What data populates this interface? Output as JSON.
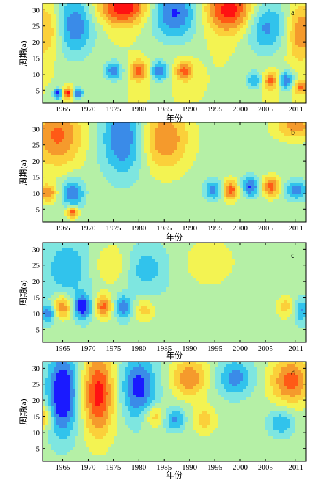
{
  "colors": {
    "ramp": [
      "#1a1aff",
      "#3a8be8",
      "#31c3ec",
      "#7ee6e0",
      "#b5f0a6",
      "#f3f352",
      "#fbd03a",
      "#f59a2c",
      "#ff5a16",
      "#ff1212"
    ]
  },
  "chart_data": [
    {
      "type": "heatmap",
      "panel_label": "a",
      "xlabel": "年份",
      "ylabel": "周期(a)",
      "xlim": [
        1961,
        2013
      ],
      "ylim": [
        1,
        32
      ],
      "x_ticks": [
        1965,
        1970,
        1975,
        1980,
        1985,
        1990,
        1995,
        2000,
        2005,
        2011
      ],
      "y_ticks": [
        5,
        10,
        15,
        20,
        25,
        30
      ],
      "base_level": 0.0,
      "features": [
        {
          "x": 1977,
          "y": 31,
          "sx": 3.5,
          "sy": 4,
          "amp": 1.0
        },
        {
          "x": 1998,
          "y": 30,
          "sx": 3.5,
          "sy": 5,
          "amp": 0.95
        },
        {
          "x": 1967,
          "y": 25,
          "sx": 3.0,
          "sy": 7,
          "amp": -0.8
        },
        {
          "x": 1987,
          "y": 29,
          "sx": 3.5,
          "sy": 6,
          "amp": -0.85
        },
        {
          "x": 2005,
          "y": 25,
          "sx": 3.0,
          "sy": 6,
          "amp": -0.7
        },
        {
          "x": 1962,
          "y": 24,
          "sx": 2.5,
          "sy": 6,
          "amp": 0.55
        },
        {
          "x": 2012,
          "y": 23,
          "sx": 2.0,
          "sy": 6,
          "amp": 0.6
        },
        {
          "x": 1975,
          "y": 11,
          "sx": 1.4,
          "sy": 2.2,
          "amp": -0.7
        },
        {
          "x": 1980,
          "y": 11,
          "sx": 1.3,
          "sy": 2.2,
          "amp": 0.75
        },
        {
          "x": 1984,
          "y": 11,
          "sx": 1.3,
          "sy": 2.2,
          "amp": -0.8
        },
        {
          "x": 1989,
          "y": 11,
          "sx": 1.3,
          "sy": 2.2,
          "amp": 0.7
        },
        {
          "x": 2003,
          "y": 8,
          "sx": 1.3,
          "sy": 2.0,
          "amp": -0.6
        },
        {
          "x": 2006,
          "y": 8,
          "sx": 1.2,
          "sy": 2.0,
          "amp": 0.75
        },
        {
          "x": 2009,
          "y": 8,
          "sx": 1.2,
          "sy": 2.0,
          "amp": -0.8
        },
        {
          "x": 2012,
          "y": 6,
          "sx": 1.0,
          "sy": 1.5,
          "amp": 0.7
        },
        {
          "x": 1964,
          "y": 4,
          "sx": 0.7,
          "sy": 1.2,
          "amp": -0.9
        },
        {
          "x": 1966,
          "y": 4,
          "sx": 0.7,
          "sy": 1.2,
          "amp": 0.9
        },
        {
          "x": 1968,
          "y": 4,
          "sx": 0.7,
          "sy": 1.2,
          "amp": -0.85
        }
      ]
    },
    {
      "type": "heatmap",
      "panel_label": "b",
      "xlabel": "年份",
      "ylabel": "周期(a)",
      "xlim": [
        1961,
        2013
      ],
      "ylim": [
        1,
        32
      ],
      "x_ticks": [
        1965,
        1970,
        1975,
        1980,
        1985,
        1990,
        1995,
        2000,
        2005,
        2011
      ],
      "y_ticks": [
        5,
        10,
        15,
        20,
        25,
        30
      ],
      "base_level": -0.1,
      "features": [
        {
          "x": 1964,
          "y": 28,
          "sx": 3.5,
          "sy": 7,
          "amp": 0.75
        },
        {
          "x": 1977,
          "y": 27,
          "sx": 3.0,
          "sy": 8,
          "amp": -0.75
        },
        {
          "x": 1985,
          "y": 27,
          "sx": 3.5,
          "sy": 7,
          "amp": 0.7
        },
        {
          "x": 2011,
          "y": 31,
          "sx": 3.0,
          "sy": 3,
          "amp": 0.6
        },
        {
          "x": 1967,
          "y": 10,
          "sx": 1.5,
          "sy": 3.0,
          "amp": -0.7
        },
        {
          "x": 1962,
          "y": 10,
          "sx": 1.2,
          "sy": 2.0,
          "amp": 0.65
        },
        {
          "x": 1967,
          "y": 4,
          "sx": 0.8,
          "sy": 1.2,
          "amp": 0.9
        },
        {
          "x": 1995,
          "y": 11,
          "sx": 1.4,
          "sy": 2.2,
          "amp": -0.65
        },
        {
          "x": 1998,
          "y": 11,
          "sx": 1.4,
          "sy": 2.2,
          "amp": 0.85
        },
        {
          "x": 2002,
          "y": 12,
          "sx": 1.4,
          "sy": 2.2,
          "amp": -0.75
        },
        {
          "x": 2006,
          "y": 12,
          "sx": 1.4,
          "sy": 2.2,
          "amp": 0.8
        },
        {
          "x": 2011,
          "y": 11,
          "sx": 1.6,
          "sy": 2.2,
          "amp": -0.6
        }
      ]
    },
    {
      "type": "heatmap",
      "panel_label": "c",
      "xlabel": "年份",
      "ylabel": "周期(a)",
      "xlim": [
        1961,
        2013
      ],
      "ylim": [
        1,
        32
      ],
      "x_ticks": [
        1965,
        1970,
        1975,
        1980,
        1985,
        1990,
        1995,
        2000,
        2005,
        2011
      ],
      "y_ticks": [
        5,
        10,
        15,
        20,
        25,
        30
      ],
      "base_level": -0.15,
      "features": [
        {
          "x": 1966,
          "y": 24,
          "sx": 3.0,
          "sy": 6,
          "amp": -0.45
        },
        {
          "x": 1975,
          "y": 25,
          "sx": 3.0,
          "sy": 5,
          "amp": 0.35
        },
        {
          "x": 1981,
          "y": 24,
          "sx": 3.0,
          "sy": 5,
          "amp": -0.4
        },
        {
          "x": 1994,
          "y": 26,
          "sx": 4.0,
          "sy": 6,
          "amp": 0.3
        },
        {
          "x": 1965,
          "y": 12,
          "sx": 1.3,
          "sy": 2.6,
          "amp": 0.75
        },
        {
          "x": 1969,
          "y": 12,
          "sx": 1.3,
          "sy": 2.6,
          "amp": -0.85
        },
        {
          "x": 1973,
          "y": 12,
          "sx": 1.3,
          "sy": 2.6,
          "amp": 0.8
        },
        {
          "x": 1977,
          "y": 12,
          "sx": 1.3,
          "sy": 2.6,
          "amp": -0.6
        },
        {
          "x": 1962,
          "y": 10,
          "sx": 1.0,
          "sy": 2.0,
          "amp": -0.6
        },
        {
          "x": 1981,
          "y": 11,
          "sx": 1.5,
          "sy": 2.5,
          "amp": 0.45
        },
        {
          "x": 2009,
          "y": 12,
          "sx": 1.5,
          "sy": 2.5,
          "amp": 0.45
        },
        {
          "x": 2012,
          "y": 11,
          "sx": 1.2,
          "sy": 2.5,
          "amp": -0.5
        }
      ]
    },
    {
      "type": "heatmap",
      "panel_label": "d",
      "xlabel": "年份",
      "ylabel": "周期(a)",
      "xlim": [
        1961,
        2013
      ],
      "ylim": [
        1,
        32
      ],
      "x_ticks": [
        1965,
        1970,
        1975,
        1980,
        1985,
        1990,
        1995,
        2000,
        2005,
        2011
      ],
      "y_ticks": [
        5,
        10,
        15,
        20,
        25,
        30
      ],
      "base_level": -0.1,
      "features": [
        {
          "x": 1965,
          "y": 22,
          "sx": 2.2,
          "sy": 9,
          "amp": -1.0
        },
        {
          "x": 1972,
          "y": 22,
          "sx": 2.2,
          "sy": 9,
          "amp": 1.0
        },
        {
          "x": 1980,
          "y": 24,
          "sx": 2.5,
          "sy": 7,
          "amp": -0.8
        },
        {
          "x": 1990,
          "y": 27,
          "sx": 2.5,
          "sy": 4,
          "amp": 0.7
        },
        {
          "x": 1999,
          "y": 27,
          "sx": 2.5,
          "sy": 4,
          "amp": -0.6
        },
        {
          "x": 2010,
          "y": 26,
          "sx": 2.8,
          "sy": 5,
          "amp": 0.8
        },
        {
          "x": 1961,
          "y": 15,
          "sx": 1.2,
          "sy": 3,
          "amp": 0.6
        },
        {
          "x": 1983,
          "y": 15,
          "sx": 1.5,
          "sy": 2.5,
          "amp": 0.5
        },
        {
          "x": 1987,
          "y": 14,
          "sx": 1.5,
          "sy": 2.5,
          "amp": -0.55
        },
        {
          "x": 1993,
          "y": 14,
          "sx": 1.6,
          "sy": 3,
          "amp": 0.4
        },
        {
          "x": 2008,
          "y": 13,
          "sx": 1.8,
          "sy": 3,
          "amp": -0.5
        }
      ]
    }
  ]
}
